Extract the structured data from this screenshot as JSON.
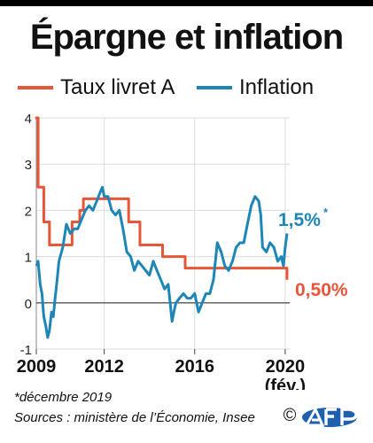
{
  "title": "Épargne et inflation",
  "colors": {
    "livret": "#e8563a",
    "inflation": "#1e86b7",
    "zero": "#555555",
    "grid": "#dcdcdc"
  },
  "legend": [
    {
      "label": "Taux livret A",
      "color": "#e8563a"
    },
    {
      "label": "Inflation",
      "color": "#1e86b7"
    }
  ],
  "chart_data": {
    "type": "line",
    "title": "Épargne et inflation",
    "xlabel": "",
    "ylabel": "",
    "xlim": [
      2009,
      2020.2
    ],
    "ylim": [
      -1,
      4
    ],
    "x_ticks": [
      {
        "value": 2009,
        "label": "2009"
      },
      {
        "value": 2012,
        "label": "2012"
      },
      {
        "value": 2016,
        "label": "2016"
      },
      {
        "value": 2020,
        "label": "2020"
      }
    ],
    "x_tick_sublabel": "(fév.)",
    "y_ticks": [
      -1,
      0,
      1,
      2,
      3,
      4
    ],
    "grid": true,
    "legend_position": "top",
    "series": [
      {
        "name": "Taux livret A",
        "color": "#e8563a",
        "step": true,
        "x": [
          2008.95,
          2009.08,
          2009.33,
          2009.58,
          2010.58,
          2010.92,
          2011.08,
          2011.58,
          2013.08,
          2013.58,
          2014.58,
          2015.58,
          2020.08
        ],
        "y": [
          4,
          2.5,
          1.75,
          1.25,
          1.75,
          2,
          2.25,
          2.25,
          1.75,
          1.25,
          1,
          0.75,
          0.5
        ],
        "end_label": "0,50%"
      },
      {
        "name": "Inflation",
        "color": "#1e86b7",
        "step": false,
        "x": [
          2009.0,
          2009.08,
          2009.17,
          2009.25,
          2009.33,
          2009.42,
          2009.5,
          2009.58,
          2009.67,
          2009.75,
          2009.83,
          2009.92,
          2010.0,
          2010.17,
          2010.33,
          2010.5,
          2010.67,
          2010.83,
          2011.0,
          2011.17,
          2011.33,
          2011.5,
          2011.67,
          2011.83,
          2011.92,
          2012.0,
          2012.17,
          2012.33,
          2012.5,
          2012.67,
          2012.83,
          2013.0,
          2013.17,
          2013.33,
          2013.5,
          2013.67,
          2013.83,
          2014.0,
          2014.17,
          2014.33,
          2014.5,
          2014.67,
          2014.83,
          2015.0,
          2015.08,
          2015.17,
          2015.33,
          2015.5,
          2015.67,
          2015.83,
          2016.0,
          2016.17,
          2016.33,
          2016.5,
          2016.67,
          2016.83,
          2017.0,
          2017.17,
          2017.33,
          2017.5,
          2017.67,
          2017.83,
          2018.0,
          2018.17,
          2018.33,
          2018.5,
          2018.67,
          2018.83,
          2018.92,
          2019.0,
          2019.17,
          2019.33,
          2019.5,
          2019.67,
          2019.83,
          2019.92,
          2020.0,
          2020.08
        ],
        "y": [
          0.8,
          0.9,
          0.4,
          0.2,
          -0.3,
          -0.5,
          -0.75,
          -0.6,
          -0.2,
          -0.3,
          0.1,
          0.5,
          0.9,
          1.2,
          1.7,
          1.5,
          1.6,
          1.6,
          1.8,
          2.0,
          2.1,
          2.0,
          2.2,
          2.4,
          2.5,
          2.3,
          2.3,
          2.0,
          1.9,
          2.0,
          1.6,
          1.1,
          1.0,
          0.7,
          0.9,
          0.8,
          0.7,
          0.6,
          0.9,
          0.7,
          0.5,
          0.3,
          0.4,
          -0.4,
          -0.2,
          0.0,
          0.1,
          0.2,
          0.1,
          0.1,
          0.2,
          -0.2,
          0.0,
          0.2,
          0.2,
          0.5,
          1.3,
          1.1,
          0.8,
          0.7,
          0.9,
          1.2,
          1.3,
          1.3,
          1.7,
          2.1,
          2.3,
          2.2,
          1.9,
          1.2,
          1.1,
          1.3,
          1.2,
          0.9,
          1.0,
          0.8,
          1.2,
          1.5
        ],
        "end_label": "1,5%",
        "end_label_note": "*"
      }
    ]
  },
  "footnote": "*décembre 2019",
  "sources": "Sources : ministère de l’Économie, Insee",
  "copyright_symbol": "©"
}
